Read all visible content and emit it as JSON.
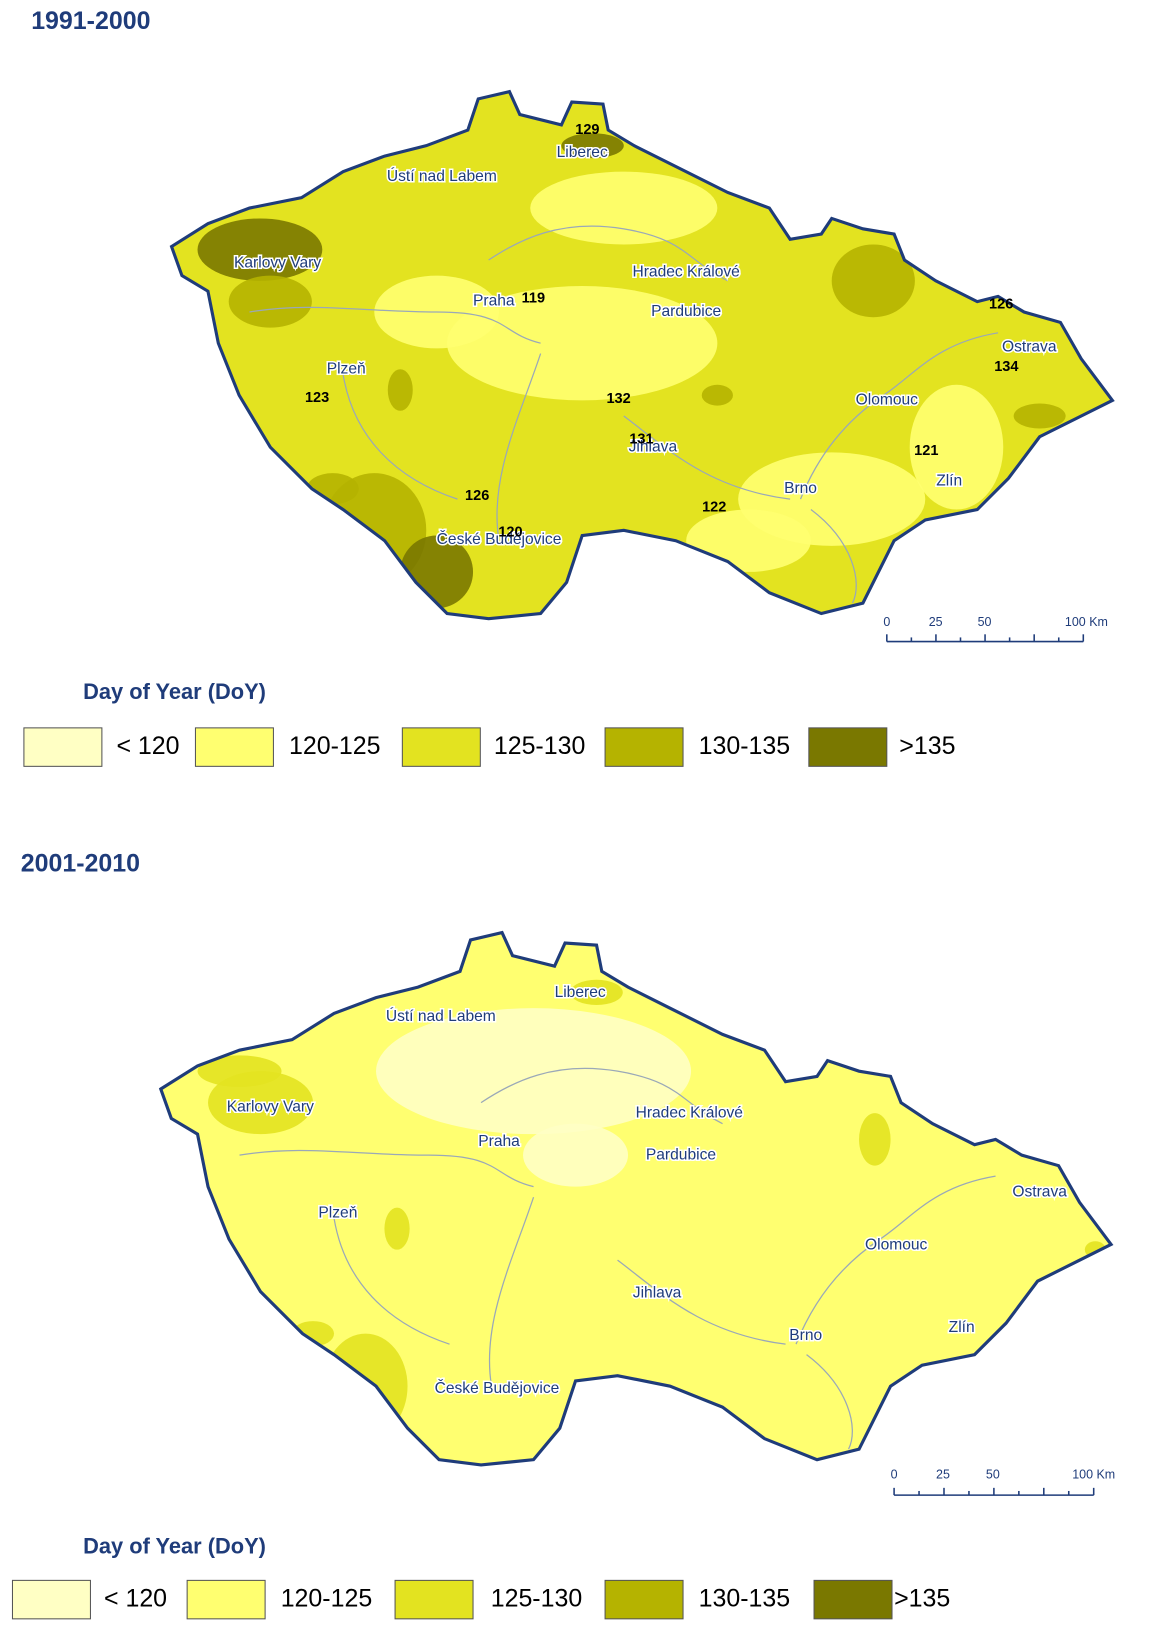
{
  "panels": [
    {
      "title": "1991-2000",
      "cities": [
        "Liberec",
        "Ústí nad Labem",
        "Karlovy Vary",
        "Hradec Králové",
        "Praha",
        "Pardubice",
        "Plzeň",
        "Ostrava",
        "Olomouc",
        "Jihlava",
        "Zlín",
        "Brno",
        "České Budějovice"
      ],
      "station_values": [
        129,
        119,
        126,
        134,
        123,
        132,
        131,
        121,
        126,
        120,
        122
      ],
      "scale_labels": [
        "0",
        "25",
        "50",
        "100 Km"
      ],
      "legend": {
        "title": "Day of Year (DoY)",
        "items": [
          {
            "label": "< 120",
            "color": "#ffffc4"
          },
          {
            "label": "120-125",
            "color": "#ffff70"
          },
          {
            "label": "125-130",
            "color": "#e3e320"
          },
          {
            "label": "130-135",
            "color": "#b5b300"
          },
          {
            "label": ">135",
            "color": "#7a7800"
          }
        ]
      }
    },
    {
      "title": "2001-2010",
      "cities": [
        "Liberec",
        "Ústí nad Labem",
        "Karlovy Vary",
        "Hradec Králové",
        "Praha",
        "Pardubice",
        "Plzeň",
        "Ostrava",
        "Olomouc",
        "Jihlava",
        "Zlín",
        "Brno",
        "České Budějovice"
      ],
      "scale_labels": [
        "0",
        "25",
        "50",
        "100 Km"
      ],
      "legend": {
        "title": "Day of Year (DoY)",
        "items": [
          {
            "label": "< 120",
            "color": "#ffffc4"
          },
          {
            "label": "120-125",
            "color": "#ffff70"
          },
          {
            "label": "125-130",
            "color": "#e3e320"
          },
          {
            "label": "130-135",
            "color": "#b5b300"
          },
          {
            "label": ">135",
            "color": "#7a7800"
          }
        ]
      }
    }
  ]
}
